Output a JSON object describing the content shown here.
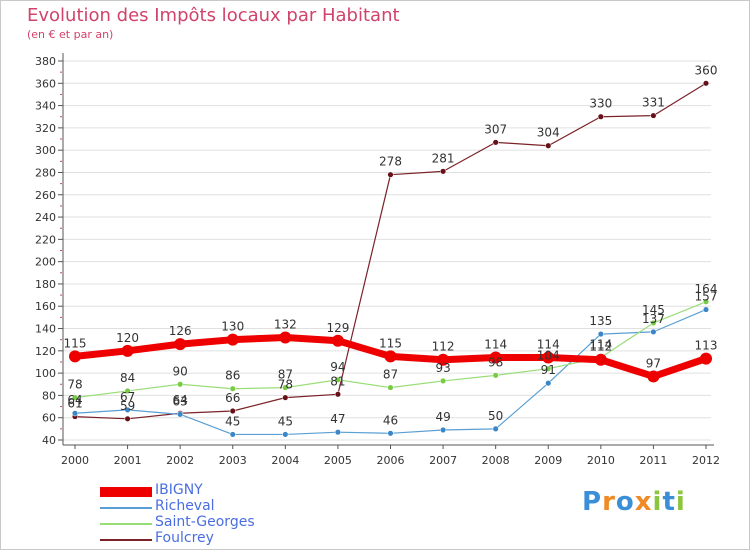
{
  "header": {
    "title": "Evolution des Impôts locaux par Habitant",
    "subtitle": "(en € et par an)"
  },
  "logo": {
    "letters": [
      "P",
      "r",
      "o",
      "x",
      "i",
      "t",
      "i"
    ],
    "colors": [
      "#3b8fd9",
      "#f08a24",
      "#3b8fd9",
      "#f08a24",
      "#8cc63f",
      "#3b8fd9",
      "#8cc63f"
    ]
  },
  "colors": {
    "title": "#d1436b",
    "axis": "#555555",
    "grid": "#e0e0e0",
    "tick_marker": "#d1436b"
  },
  "chart_data": {
    "type": "line",
    "title": "Evolution des Impôts locaux par Habitant",
    "subtitle": "(en € et par an)",
    "xlabel": "",
    "ylabel": "",
    "categories": [
      "2000",
      "2001",
      "2002",
      "2003",
      "2004",
      "2005",
      "2006",
      "2007",
      "2008",
      "2009",
      "2010",
      "2011",
      "2012"
    ],
    "y_ticks": [
      40,
      60,
      80,
      100,
      120,
      140,
      160,
      180,
      200,
      220,
      240,
      260,
      280,
      300,
      320,
      340,
      360,
      380
    ],
    "ylim": [
      40,
      380
    ],
    "grid": true,
    "legend_position": "bottom-left",
    "series": [
      {
        "name": "IBIGNY",
        "values": [
          115,
          120,
          126,
          130,
          132,
          129,
          115,
          112,
          114,
          114,
          112,
          97,
          113
        ],
        "labels": [
          "115",
          "120",
          "126",
          "130",
          "132",
          "129",
          "115",
          "112",
          "114",
          "114",
          "112",
          "97",
          "113"
        ],
        "color": "#ee0000",
        "marker_color": "#ee0000",
        "width": 7
      },
      {
        "name": "Richeval",
        "values": [
          64,
          67,
          63,
          45,
          45,
          47,
          46,
          49,
          50,
          91,
          135,
          137,
          157
        ],
        "labels": [
          "64",
          "67",
          "63",
          "45",
          "45",
          "47",
          "46",
          "49",
          "50",
          "91",
          "135",
          "137",
          "157"
        ],
        "color": "#5a9fd4",
        "marker_color": "#3a86c8",
        "width": 1.2
      },
      {
        "name": "Saint-Georges",
        "values": [
          78,
          84,
          90,
          86,
          87,
          94,
          87,
          93,
          98,
          104,
          114,
          145,
          164
        ],
        "labels": [
          "78",
          "84",
          "90",
          "86",
          "87",
          "94",
          "87",
          "93",
          "98",
          "104",
          "114",
          "145",
          "164"
        ],
        "color": "#99dd77",
        "marker_color": "#77cc44",
        "width": 1.2
      },
      {
        "name": "Foulcrey",
        "values": [
          61,
          59,
          64,
          66,
          78,
          81,
          278,
          281,
          307,
          304,
          330,
          331,
          360
        ],
        "labels": [
          "61",
          "59",
          "64",
          "66",
          "78",
          "81",
          "278",
          "281",
          "307",
          "304",
          "330",
          "331",
          "360"
        ],
        "color": "#7a2228",
        "marker_color": "#661018",
        "width": 1.2
      }
    ]
  }
}
